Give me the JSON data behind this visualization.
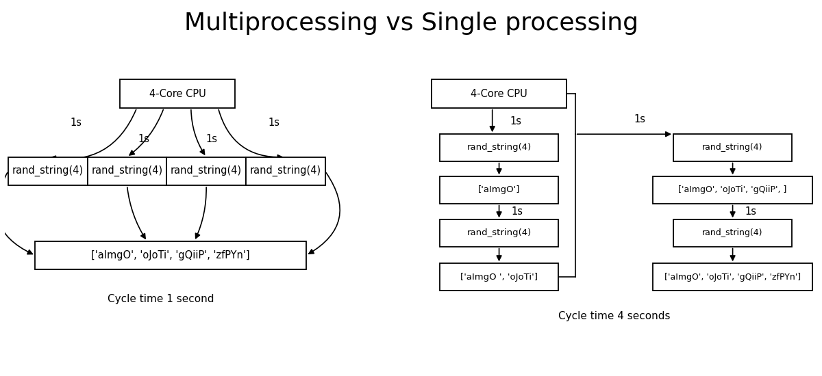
{
  "title": "Multiprocessing vs Single processing",
  "title_fontsize": 26,
  "bg_color": "#ffffff",
  "box_edgecolor": "#000000",
  "box_facecolor": "#ffffff",
  "text_color": "#000000",
  "label_fontsize": 10.5,
  "annot_fontsize": 10.5,
  "cycle_fontsize": 11,
  "left_cpu_label": "4-Core CPU",
  "left_rand_labels": [
    "rand_string(4)",
    "rand_string(4)",
    "rand_string(4)",
    "rand_string(4)"
  ],
  "left_result_label": "['aImgO', 'oJoTi', 'gQiiP', 'zfPYn']",
  "left_cycle_label": "Cycle time 1 second",
  "right_cpu_label": "4-Core CPU",
  "right_col1_nodes": [
    "rand_string(4)",
    "['aImgO']",
    "rand_string(4)",
    "['aImgO ', 'oJoTi']"
  ],
  "right_col2_nodes": [
    "rand_string(4)",
    "['aImgO', 'oJoTi', 'gQiiP', ]",
    "rand_string(4)",
    "['aImgO', 'oJoTi', 'gQiiP', 'zfPYn']"
  ],
  "right_cycle_label": "Cycle time 4 seconds"
}
